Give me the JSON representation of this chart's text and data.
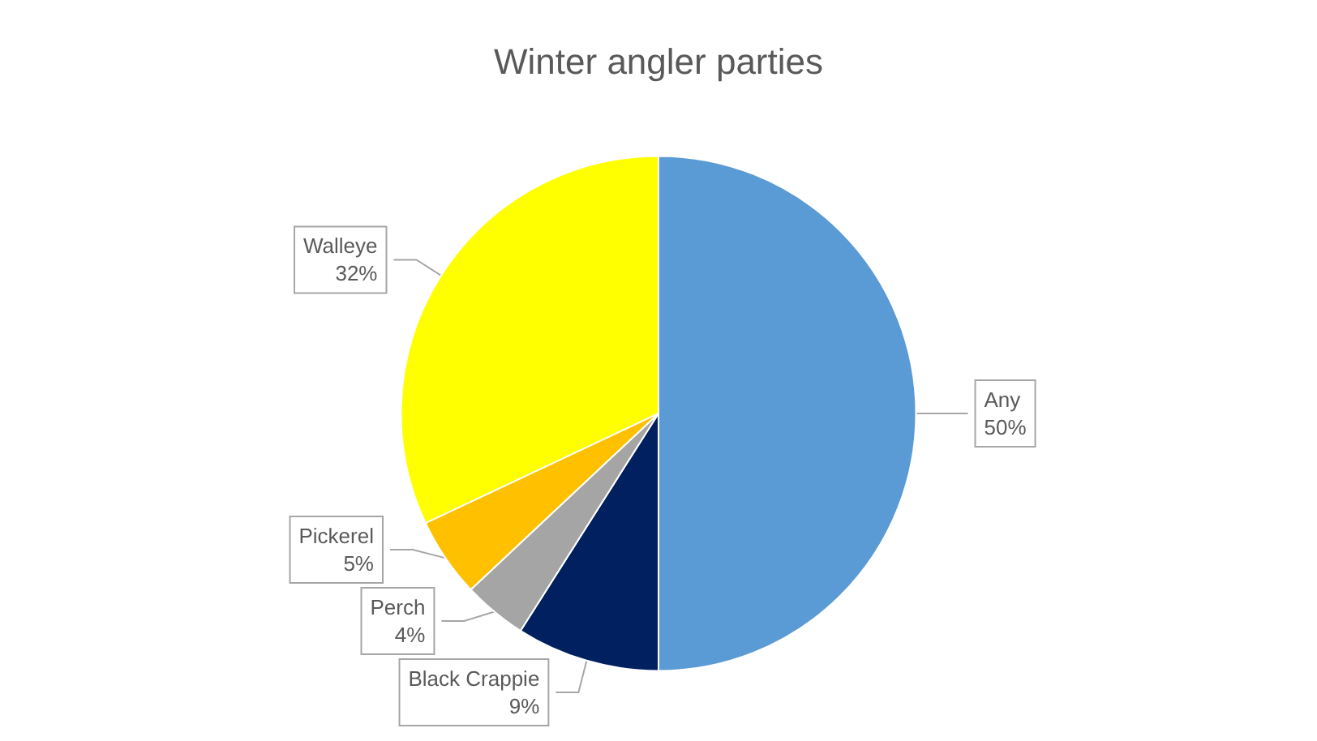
{
  "chart_data": {
    "type": "pie",
    "title": "Winter angler parties",
    "categories": [
      "Any",
      "Black Crappie",
      "Perch",
      "Pickerel",
      "Walleye"
    ],
    "values": [
      50,
      9,
      4,
      5,
      32
    ],
    "value_labels": [
      "50%",
      "9%",
      "4%",
      "5%",
      "32%"
    ],
    "colors": [
      "#5b9bd5",
      "#002060",
      "#a5a5a5",
      "#ffc000",
      "#ffff00"
    ],
    "legend": false
  }
}
